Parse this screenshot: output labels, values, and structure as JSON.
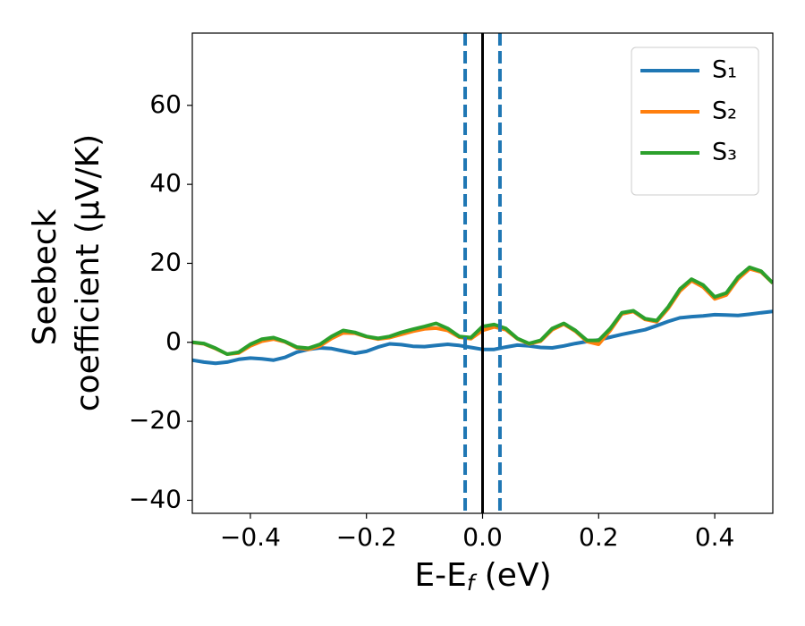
{
  "chart_data": {
    "type": "line",
    "xlabel": [
      "E-E",
      "f",
      " (eV)"
    ],
    "ylabel": [
      "Seebeck",
      "coefficient  (μV/K)"
    ],
    "x": [
      -0.5,
      -0.48,
      -0.46,
      -0.44,
      -0.42,
      -0.4,
      -0.38,
      -0.36,
      -0.34,
      -0.32,
      -0.3,
      -0.28,
      -0.26,
      -0.24,
      -0.22,
      -0.2,
      -0.18,
      -0.16,
      -0.14,
      -0.12,
      -0.1,
      -0.08,
      -0.06,
      -0.04,
      -0.02,
      0,
      0.02,
      0.04,
      0.06,
      0.08,
      0.1,
      0.12,
      0.14,
      0.16,
      0.18,
      0.2,
      0.22,
      0.24,
      0.26,
      0.28,
      0.3,
      0.32,
      0.34,
      0.36,
      0.38,
      0.4,
      0.42,
      0.44,
      0.46,
      0.48,
      0.5
    ],
    "series": [
      {
        "name": "S₁",
        "color": "#1f77b4",
        "values": [
          -4.5,
          -5.0,
          -5.3,
          -5.0,
          -4.3,
          -4.0,
          -4.2,
          -4.5,
          -3.8,
          -2.5,
          -1.8,
          -1.4,
          -1.6,
          -2.2,
          -2.8,
          -2.3,
          -1.2,
          -0.4,
          -0.6,
          -1.0,
          -1.1,
          -0.8,
          -0.5,
          -0.8,
          -1.3,
          -1.8,
          -1.8,
          -1.2,
          -0.7,
          -0.9,
          -1.3,
          -1.4,
          -0.9,
          -0.3,
          0.2,
          0.6,
          1.3,
          2.0,
          2.6,
          3.2,
          4.2,
          5.3,
          6.2,
          6.5,
          6.7,
          7.0,
          6.9,
          6.8,
          7.1,
          7.5,
          7.8
        ]
      },
      {
        "name": "S₂",
        "color": "#ff7f0e",
        "values": [
          0,
          -0.4,
          -1.6,
          -3.0,
          -2.7,
          -0.9,
          0.3,
          0.8,
          0.1,
          -1.4,
          -1.8,
          -0.9,
          1.0,
          2.4,
          2.3,
          1.4,
          0.8,
          1.2,
          2.0,
          2.8,
          3.4,
          3.6,
          3.0,
          1.3,
          0.9,
          3.0,
          3.9,
          3.2,
          0.9,
          -0.4,
          0.3,
          3.2,
          4.6,
          2.8,
          0.2,
          -0.5,
          3.0,
          7.2,
          7.8,
          5.8,
          5.2,
          8.6,
          13.0,
          15.6,
          14.0,
          11.0,
          12.0,
          16.0,
          18.6,
          17.8,
          15.0
        ]
      },
      {
        "name": "S₃",
        "color": "#2ca02c",
        "values": [
          0,
          -0.3,
          -1.5,
          -3.0,
          -2.5,
          -0.5,
          0.8,
          1.2,
          0.2,
          -1.2,
          -1.5,
          -0.5,
          1.5,
          3.0,
          2.5,
          1.5,
          1.0,
          1.5,
          2.5,
          3.3,
          4.0,
          4.8,
          3.5,
          1.5,
          1.2,
          4.0,
          4.5,
          3.5,
          1.0,
          -0.3,
          0.5,
          3.5,
          4.8,
          3.0,
          0.5,
          0.5,
          3.5,
          7.5,
          8.0,
          6.0,
          5.5,
          9.0,
          13.5,
          16.0,
          14.5,
          11.5,
          12.5,
          16.5,
          19.0,
          18.0,
          15.0
        ]
      }
    ],
    "vlines": [
      {
        "x": -0.03,
        "color": "#1f77b4",
        "style": "dashed"
      },
      {
        "x": 0.03,
        "color": "#1f77b4",
        "style": "dashed"
      },
      {
        "x": 0,
        "color": "#000000",
        "style": "solid"
      }
    ],
    "xlim": [
      -0.5,
      0.5
    ],
    "xticks": [
      {
        "value": -0.4,
        "label": "−0.4"
      },
      {
        "value": -0.2,
        "label": "−0.2"
      },
      {
        "value": 0,
        "label": "0.0"
      },
      0.2,
      0.4
    ],
    "ylim": [
      -43.3,
      78.3
    ],
    "yticks": [
      {
        "value": -40,
        "label": "−40"
      },
      {
        "value": -20,
        "label": "−20"
      },
      0,
      20,
      40,
      60
    ],
    "legend": "upper right",
    "grid": false
  }
}
